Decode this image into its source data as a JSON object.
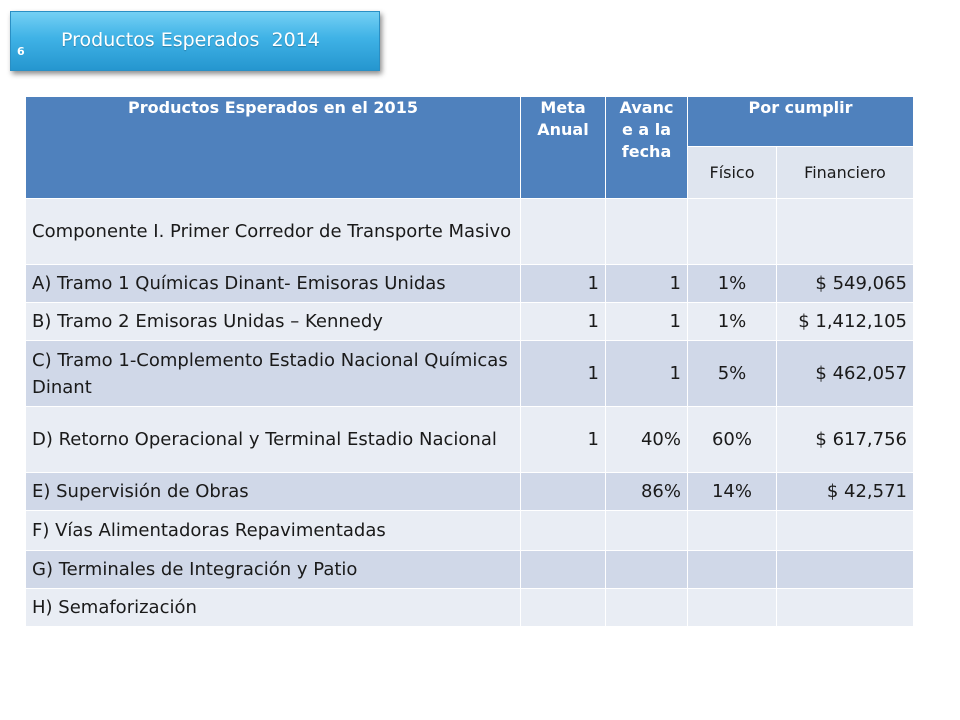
{
  "header": {
    "title": "Productos Esperados  2014",
    "slide_number": "6"
  },
  "table": {
    "headers": {
      "product": "Productos  Esperados en el 2015",
      "meta": "Meta Anual",
      "avance": "Avanc e a la fecha",
      "por_cumplir": "Por cumplir",
      "fisico": "Físico",
      "financiero": "Financiero"
    },
    "rows": [
      {
        "name": "Componente I. Primer Corredor de Transporte Masivo",
        "meta": "",
        "avance": "",
        "fisico": "",
        "financiero": ""
      },
      {
        "name": "A) Tramo 1  Químicas Dinant- Emisoras Unidas",
        "meta": "1",
        "avance": "1",
        "fisico": "1%",
        "financiero": "$ 549,065"
      },
      {
        "name": "B) Tramo 2 Emisoras Unidas – Kennedy",
        "meta": "1",
        "avance": "1",
        "fisico": "1%",
        "financiero": "$ 1,412,105"
      },
      {
        "name": "C)  Tramo 1-Complemento Estadio Nacional Químicas  Dinant",
        "meta": "1",
        "avance": "1",
        "fisico": "5%",
        "financiero": "$ 462,057"
      },
      {
        "name": "D) Retorno Operacional y Terminal Estadio Nacional",
        "meta": "1",
        "avance": "40%",
        "fisico": "60%",
        "financiero": "$ 617,756"
      },
      {
        "name": "E) Supervisión de Obras",
        "meta": "",
        "avance": "86%",
        "fisico": "14%",
        "financiero": "$ 42,571"
      },
      {
        "name": "F) Vías Alimentadoras Repavimentadas",
        "meta": "",
        "avance": "",
        "fisico": "",
        "financiero": ""
      },
      {
        "name": "G) Terminales de Integración y Patio",
        "meta": "",
        "avance": "",
        "fisico": "",
        "financiero": ""
      },
      {
        "name": "H) Semaforización",
        "meta": "",
        "avance": "",
        "fisico": "",
        "financiero": ""
      }
    ]
  }
}
